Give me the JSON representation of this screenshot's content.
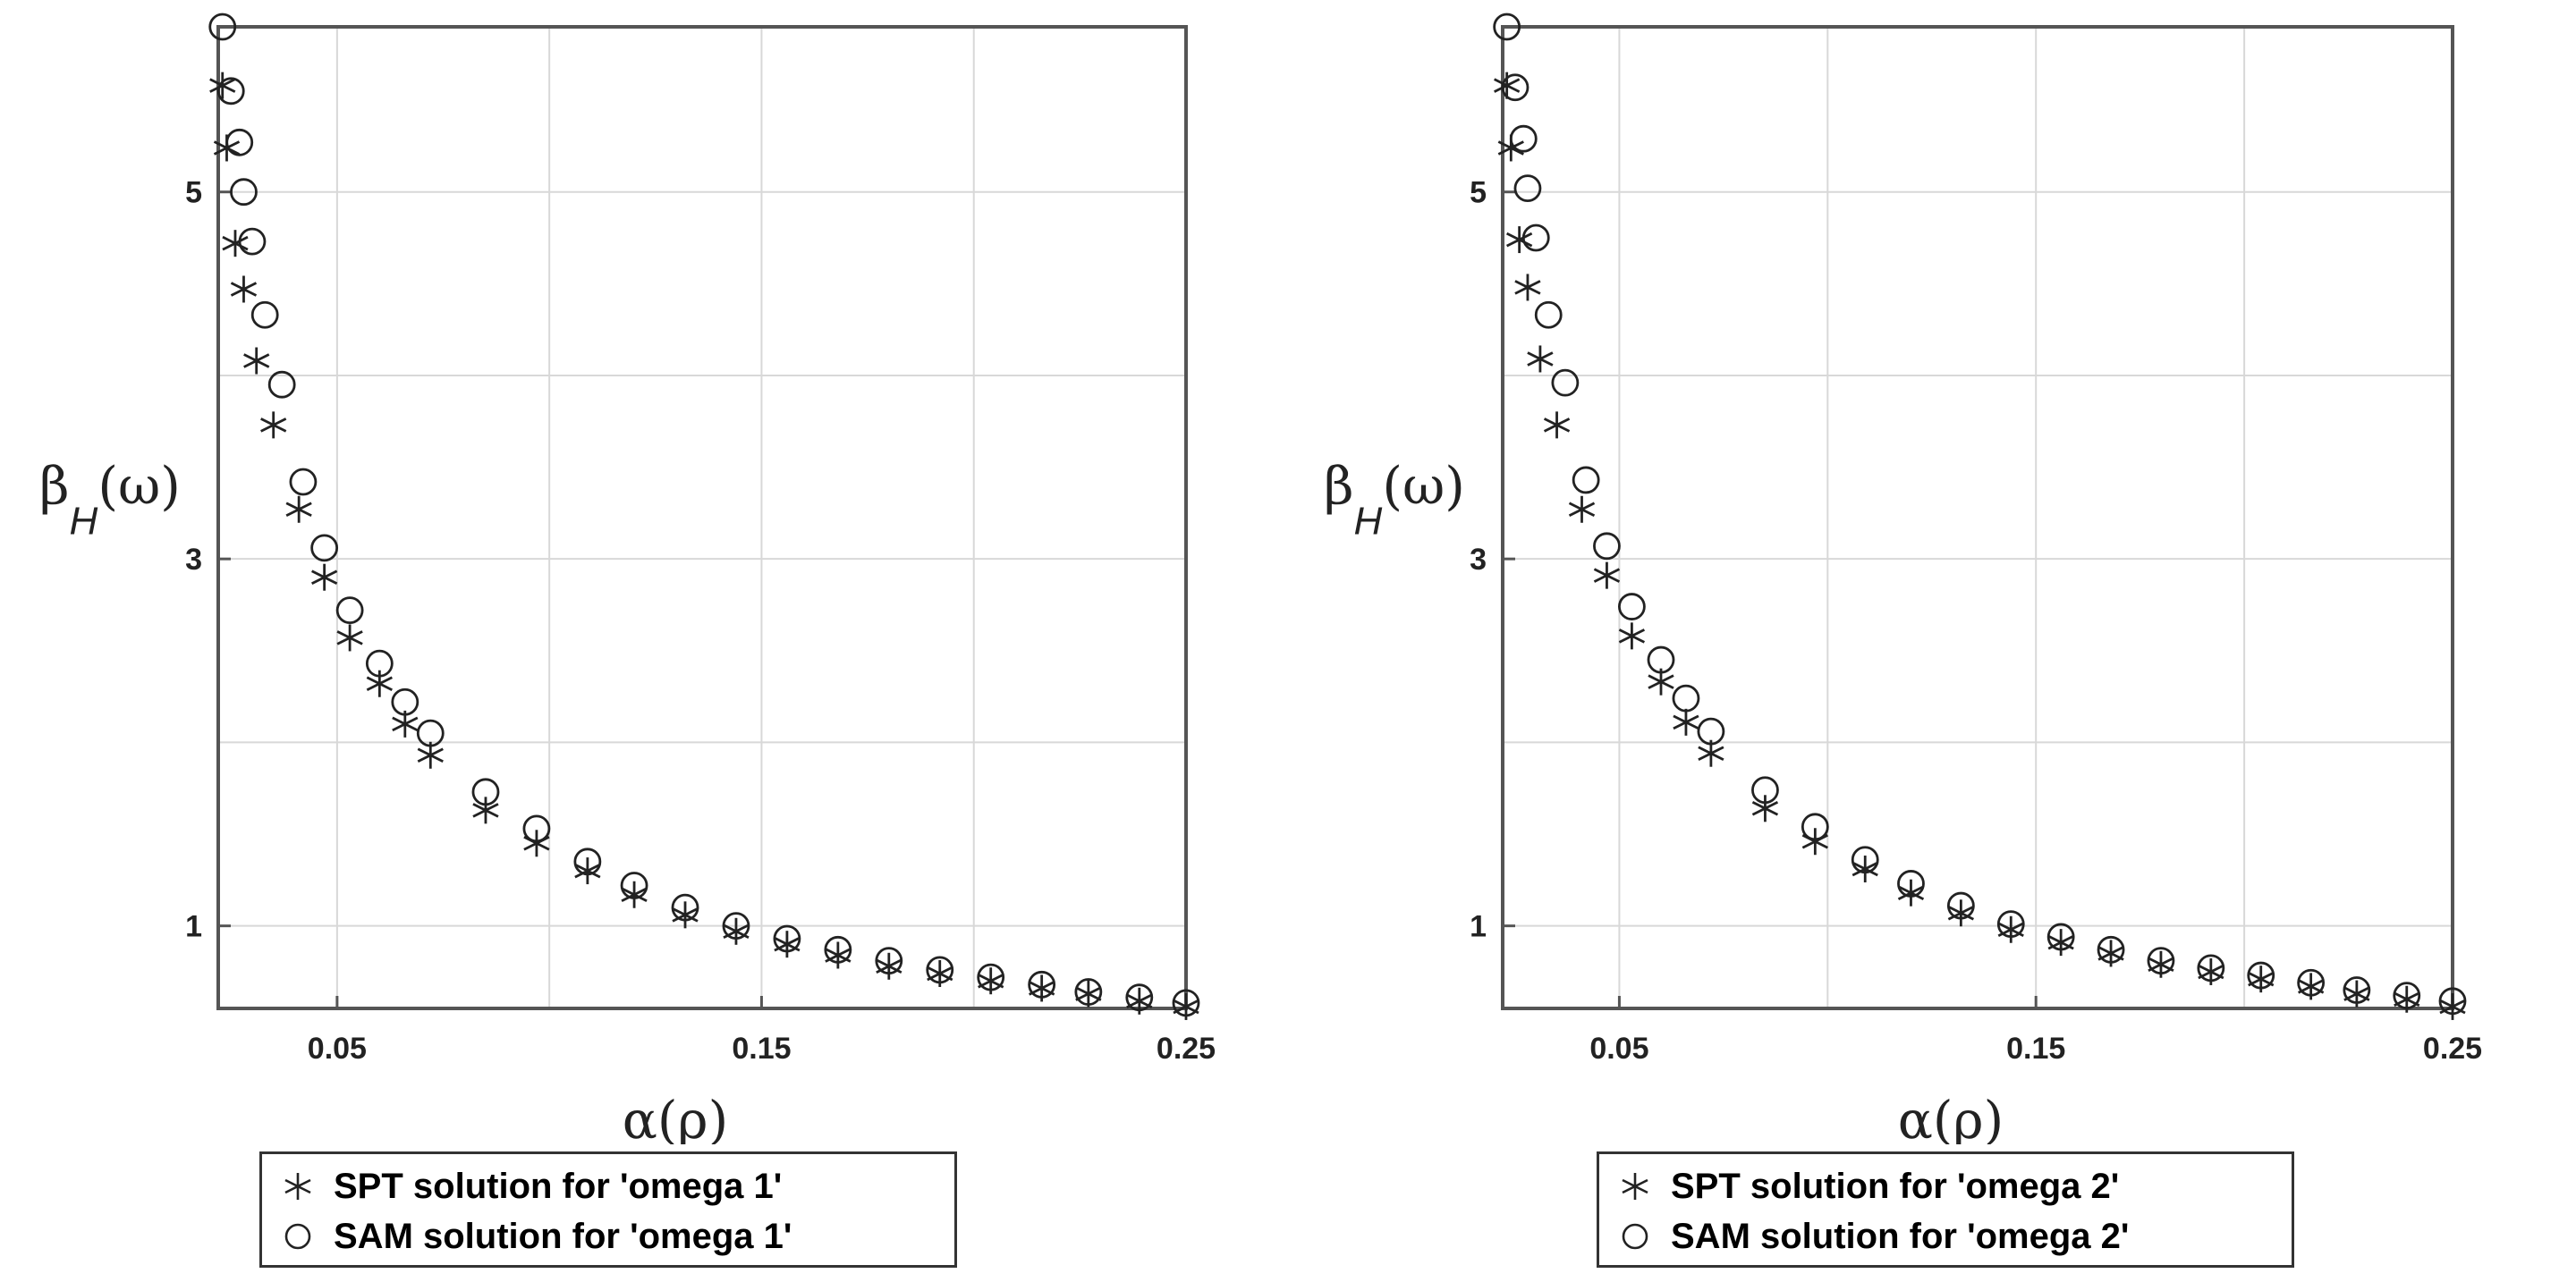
{
  "chart_data": [
    {
      "type": "scatter",
      "xlabel": "α(ρ)",
      "ylabel": "β",
      "ylabel_sub": "H",
      "ylabel_arg": "(ω)",
      "xlim": [
        0.022,
        0.25
      ],
      "ylim": [
        0.55,
        5.9
      ],
      "xticks": [
        0.05,
        0.15,
        0.25
      ],
      "xtick_labels": [
        "0.05",
        "0.15",
        "0.25"
      ],
      "yticks": [
        1,
        3,
        5
      ],
      "ytick_labels": [
        "1",
        "3",
        "5"
      ],
      "xgrid": [
        0.05,
        0.1,
        0.15,
        0.2,
        0.25
      ],
      "ygrid": [
        1,
        2,
        3,
        4,
        5
      ],
      "grid": true,
      "legend_position": "bottom",
      "series": [
        {
          "name": "SPT solution for 'omega 1'",
          "name_bold": "SPT",
          "name_rest": " solution for 'omega 1'",
          "marker": "star",
          "x": [
            0.023,
            0.024,
            0.026,
            0.028,
            0.031,
            0.035,
            0.041,
            0.047,
            0.053,
            0.06,
            0.066,
            0.072,
            0.085,
            0.097,
            0.109,
            0.12,
            0.132,
            0.144,
            0.156,
            0.168,
            0.18,
            0.192,
            0.204,
            0.216,
            0.227,
            0.239,
            0.25
          ],
          "y": [
            5.58,
            5.24,
            4.72,
            4.47,
            4.08,
            3.73,
            3.27,
            2.9,
            2.57,
            2.32,
            2.1,
            1.93,
            1.63,
            1.45,
            1.3,
            1.17,
            1.06,
            0.97,
            0.9,
            0.84,
            0.78,
            0.74,
            0.7,
            0.66,
            0.63,
            0.59,
            0.56
          ]
        },
        {
          "name": "SAM solution for 'omega 1'",
          "name_bold": "SAM",
          "name_rest": " solution for 'omega 1'",
          "marker": "circle",
          "x": [
            0.023,
            0.025,
            0.027,
            0.028,
            0.03,
            0.033,
            0.037,
            0.042,
            0.047,
            0.053,
            0.06,
            0.066,
            0.072,
            0.085,
            0.097,
            0.109,
            0.12,
            0.132,
            0.144,
            0.156,
            0.168,
            0.18,
            0.192,
            0.204,
            0.216,
            0.227,
            0.239,
            0.25
          ],
          "y": [
            5.9,
            5.55,
            5.27,
            5.0,
            4.73,
            4.33,
            3.95,
            3.42,
            3.06,
            2.72,
            2.43,
            2.22,
            2.05,
            1.73,
            1.53,
            1.35,
            1.22,
            1.1,
            1.0,
            0.93,
            0.87,
            0.81,
            0.76,
            0.72,
            0.68,
            0.64,
            0.61,
            0.58
          ]
        }
      ]
    },
    {
      "type": "scatter",
      "xlabel": "α(ρ)",
      "ylabel": "β",
      "ylabel_sub": "H",
      "ylabel_arg": "(ω)",
      "xlim": [
        0.022,
        0.25
      ],
      "ylim": [
        0.55,
        5.9
      ],
      "xticks": [
        0.05,
        0.15,
        0.25
      ],
      "xtick_labels": [
        "0.05",
        "0.15",
        "0.25"
      ],
      "yticks": [
        1,
        3,
        5
      ],
      "ytick_labels": [
        "1",
        "3",
        "5"
      ],
      "xgrid": [
        0.05,
        0.1,
        0.15,
        0.2,
        0.25
      ],
      "ygrid": [
        1,
        2,
        3,
        4,
        5
      ],
      "grid": true,
      "legend_position": "bottom",
      "series": [
        {
          "name": "SPT solution for 'omega 2'",
          "name_bold": "SPT",
          "name_rest": " solution for 'omega 2'",
          "marker": "star",
          "x": [
            0.023,
            0.024,
            0.026,
            0.028,
            0.031,
            0.035,
            0.041,
            0.047,
            0.053,
            0.06,
            0.066,
            0.072,
            0.085,
            0.097,
            0.109,
            0.12,
            0.132,
            0.144,
            0.156,
            0.168,
            0.18,
            0.192,
            0.204,
            0.216,
            0.227,
            0.239,
            0.25
          ],
          "y": [
            5.58,
            5.24,
            4.74,
            4.48,
            4.09,
            3.73,
            3.27,
            2.91,
            2.58,
            2.33,
            2.11,
            1.94,
            1.64,
            1.46,
            1.31,
            1.18,
            1.07,
            0.98,
            0.91,
            0.85,
            0.79,
            0.75,
            0.71,
            0.67,
            0.63,
            0.6,
            0.56
          ]
        },
        {
          "name": "SAM solution for 'omega 2'",
          "name_bold": "SAM",
          "name_rest": " solution for 'omega 2'",
          "marker": "circle",
          "x": [
            0.023,
            0.025,
            0.027,
            0.028,
            0.03,
            0.033,
            0.037,
            0.042,
            0.047,
            0.053,
            0.06,
            0.066,
            0.072,
            0.085,
            0.097,
            0.109,
            0.12,
            0.132,
            0.144,
            0.156,
            0.168,
            0.18,
            0.192,
            0.204,
            0.216,
            0.227,
            0.239,
            0.25
          ],
          "y": [
            5.9,
            5.57,
            5.29,
            5.02,
            4.75,
            4.33,
            3.96,
            3.43,
            3.07,
            2.74,
            2.45,
            2.24,
            2.06,
            1.74,
            1.54,
            1.36,
            1.23,
            1.11,
            1.01,
            0.94,
            0.87,
            0.81,
            0.77,
            0.73,
            0.69,
            0.65,
            0.62,
            0.59
          ]
        }
      ]
    }
  ]
}
